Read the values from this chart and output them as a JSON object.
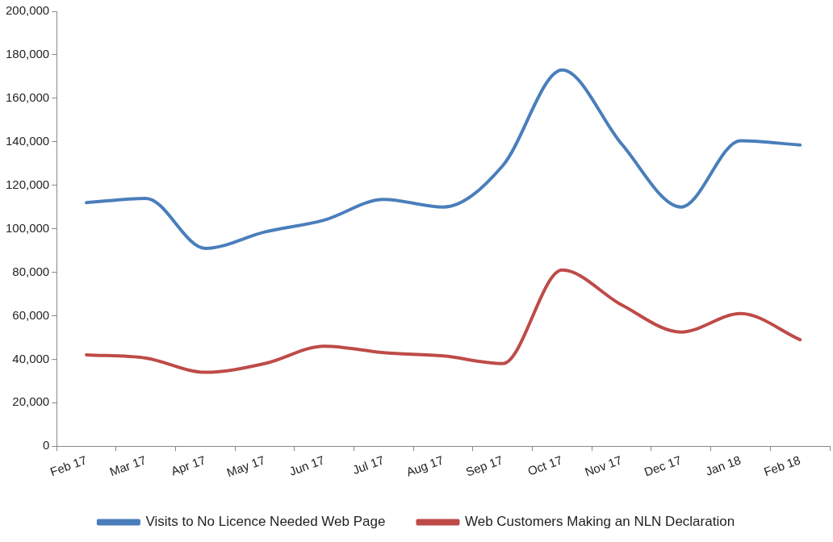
{
  "chart_data": {
    "type": "line",
    "categories": [
      "Feb 17",
      "Mar 17",
      "Apr 17",
      "May 17",
      "Jun 17",
      "Jul 17",
      "Aug 17",
      "Sep 17",
      "Oct 17",
      "Nov 17",
      "Dec 17",
      "Jan 18",
      "Feb 18"
    ],
    "series": [
      {
        "name": "Visits to No Licence Needed Web Page",
        "color": "#4a7ebb",
        "values": [
          112000,
          114000,
          91000,
          98500,
          104000,
          113500,
          110000,
          129000,
          173000,
          139000,
          110000,
          140500,
          138500
        ]
      },
      {
        "name": "Web Customers Making an NLN Declaration",
        "color": "#be4b48",
        "values": [
          42000,
          40500,
          34000,
          38000,
          46000,
          43000,
          41500,
          38000,
          81000,
          65000,
          52500,
          61000,
          49000
        ]
      }
    ],
    "ylim": [
      0,
      200000
    ],
    "yticks": [
      {
        "value": 0,
        "label": "0"
      },
      {
        "value": 20000,
        "label": "20,000"
      },
      {
        "value": 40000,
        "label": "40,000"
      },
      {
        "value": 60000,
        "label": "60,000"
      },
      {
        "value": 80000,
        "label": "80,000"
      },
      {
        "value": 100000,
        "label": "100,000"
      },
      {
        "value": 120000,
        "label": "120,000"
      },
      {
        "value": 140000,
        "label": "140,000"
      },
      {
        "value": 160000,
        "label": "160,000"
      },
      {
        "value": 180000,
        "label": "180,000"
      },
      {
        "value": 200000,
        "label": "200,000"
      }
    ],
    "grid": false,
    "legend": "bottom",
    "marker": "none",
    "line_style": "solid"
  }
}
